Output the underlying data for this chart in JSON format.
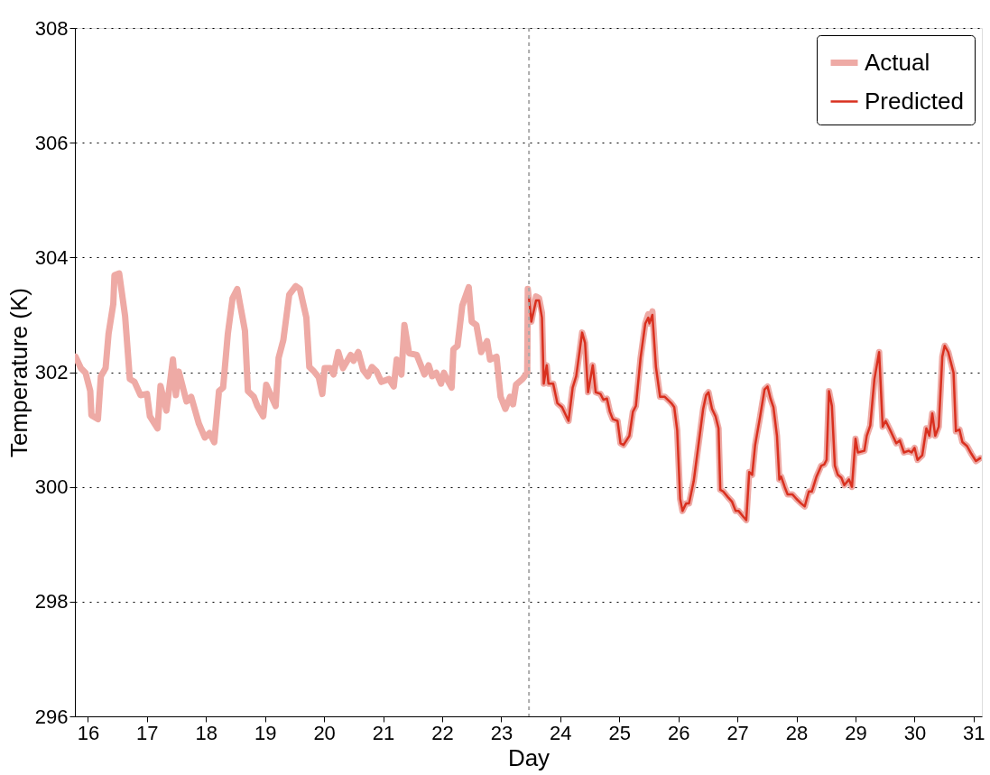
{
  "chart_data": {
    "type": "line",
    "xlabel": "Day",
    "ylabel": "Temperature (K)",
    "xlim": [
      15.78,
      31.14
    ],
    "xticks": [
      16,
      17,
      18,
      19,
      20,
      21,
      22,
      23,
      24,
      25,
      26,
      27,
      28,
      29,
      30,
      31
    ],
    "ylim": [
      296,
      308
    ],
    "yticks": [
      296,
      298,
      300,
      302,
      304,
      306,
      308
    ],
    "grid": "y",
    "legend": "top right",
    "line_style": "solid",
    "marker": "none",
    "ref_lines": [
      {
        "axis": "x",
        "value": 23.47,
        "label": null,
        "color": "#aaaaaa",
        "line_style": "dashed"
      }
    ],
    "series": [
      {
        "name": "Actual",
        "color": "#eeaaa5",
        "x": [
          15.79,
          15.88,
          15.96,
          16.04,
          16.06,
          16.17,
          16.22,
          16.3,
          16.35,
          16.43,
          16.45,
          16.53,
          16.63,
          16.71,
          16.79,
          16.89,
          17.0,
          17.05,
          17.18,
          17.23,
          17.33,
          17.44,
          17.49,
          17.54,
          17.67,
          17.75,
          17.88,
          17.98,
          18.06,
          18.14,
          18.22,
          18.29,
          18.37,
          18.45,
          18.53,
          18.66,
          18.71,
          18.81,
          18.87,
          18.97,
          19.02,
          19.18,
          19.23,
          19.31,
          19.41,
          19.52,
          19.59,
          19.7,
          19.75,
          19.83,
          19.91,
          19.97,
          20.01,
          20.11,
          20.16,
          20.24,
          20.32,
          20.45,
          20.5,
          20.58,
          20.66,
          20.74,
          20.81,
          20.89,
          20.97,
          21.1,
          21.18,
          21.23,
          21.31,
          21.36,
          21.44,
          21.57,
          21.7,
          21.77,
          21.83,
          21.9,
          21.98,
          22.03,
          22.08,
          22.16,
          22.19,
          22.26,
          22.34,
          22.45,
          22.5,
          22.58,
          22.66,
          22.76,
          22.81,
          22.92,
          22.99,
          23.07,
          23.15,
          23.2,
          23.25,
          23.36,
          23.44,
          23.45,
          23.51,
          23.59,
          23.64,
          23.69,
          23.72,
          23.77,
          23.8,
          23.88,
          23.95,
          24.03,
          24.14,
          24.21,
          24.27,
          24.37,
          24.42,
          24.47,
          24.55,
          24.6,
          24.68,
          24.73,
          24.79,
          24.84,
          24.89,
          24.97,
          25.02,
          25.07,
          25.17,
          25.23,
          25.28,
          25.36,
          25.44,
          25.49,
          25.51,
          25.56,
          25.62,
          25.69,
          25.77,
          25.88,
          25.93,
          25.98,
          26.03,
          26.07,
          26.13,
          26.18,
          26.26,
          26.34,
          26.42,
          26.47,
          26.51,
          26.57,
          26.63,
          26.68,
          26.71,
          26.76,
          26.84,
          26.91,
          26.97,
          27.02,
          27.1,
          27.15,
          27.2,
          27.25,
          27.3,
          27.38,
          27.46,
          27.51,
          27.56,
          27.61,
          27.67,
          27.71,
          27.74,
          27.8,
          27.85,
          27.93,
          28.0,
          28.08,
          28.14,
          28.21,
          28.26,
          28.34,
          28.42,
          28.47,
          28.51,
          28.55,
          28.6,
          28.65,
          28.7,
          28.76,
          28.81,
          28.89,
          28.94,
          29.0,
          29.04,
          29.15,
          29.19,
          29.25,
          29.32,
          29.4,
          29.46,
          29.51,
          29.61,
          29.69,
          29.75,
          29.82,
          29.9,
          29.95,
          30.0,
          30.05,
          30.13,
          30.2,
          30.25,
          30.3,
          30.35,
          30.41,
          30.47,
          30.51,
          30.57,
          30.66,
          30.7,
          30.76,
          30.81,
          30.89,
          30.96,
          31.04,
          31.11
        ],
        "values": [
          302.27,
          302.07,
          301.99,
          301.67,
          301.25,
          301.18,
          301.93,
          302.07,
          302.67,
          303.19,
          303.69,
          303.72,
          302.98,
          301.88,
          301.83,
          301.6,
          301.62,
          301.23,
          301.02,
          301.76,
          301.33,
          302.22,
          301.6,
          302.01,
          301.49,
          301.57,
          301.1,
          300.86,
          300.94,
          300.78,
          301.67,
          301.73,
          302.67,
          303.29,
          303.45,
          302.72,
          301.67,
          301.57,
          301.41,
          301.23,
          301.78,
          301.41,
          302.25,
          302.56,
          303.35,
          303.5,
          303.45,
          302.95,
          302.09,
          302.01,
          301.91,
          301.62,
          302.07,
          302.07,
          301.96,
          302.35,
          302.07,
          302.3,
          302.2,
          302.35,
          302.04,
          301.93,
          302.09,
          302.01,
          301.83,
          301.88,
          301.75,
          302.22,
          301.96,
          302.82,
          302.33,
          302.3,
          301.96,
          302.12,
          301.93,
          301.99,
          301.8,
          301.99,
          301.88,
          301.73,
          302.4,
          302.46,
          303.16,
          303.48,
          302.88,
          302.82,
          302.35,
          302.54,
          302.22,
          302.27,
          301.57,
          301.36,
          301.57,
          301.44,
          301.78,
          301.88,
          301.99,
          303.45,
          302.88,
          303.32,
          303.29,
          303.03,
          301.8,
          302.12,
          301.8,
          301.8,
          301.46,
          301.39,
          301.15,
          301.73,
          301.93,
          302.69,
          302.51,
          301.65,
          302.12,
          301.65,
          301.62,
          301.52,
          301.54,
          301.31,
          301.18,
          301.15,
          300.76,
          300.73,
          300.89,
          301.31,
          301.41,
          302.25,
          302.85,
          303.01,
          302.85,
          303.06,
          302.09,
          301.57,
          301.57,
          301.46,
          301.39,
          300.99,
          299.79,
          299.58,
          299.71,
          299.71,
          300.1,
          300.73,
          301.36,
          301.6,
          301.65,
          301.36,
          301.23,
          301.02,
          299.95,
          299.92,
          299.82,
          299.74,
          299.58,
          299.58,
          299.48,
          299.42,
          300.26,
          300.21,
          300.73,
          301.2,
          301.7,
          301.75,
          301.54,
          301.39,
          300.89,
          300.13,
          300.18,
          300.0,
          299.87,
          299.87,
          299.79,
          299.71,
          299.66,
          299.92,
          299.92,
          300.18,
          300.37,
          300.39,
          300.47,
          301.67,
          301.41,
          300.37,
          300.21,
          300.16,
          300.03,
          300.13,
          300.0,
          300.84,
          300.6,
          300.63,
          300.89,
          301.07,
          301.88,
          302.35,
          301.05,
          301.15,
          300.94,
          300.76,
          300.81,
          300.6,
          300.63,
          300.6,
          300.68,
          300.47,
          300.55,
          301.02,
          300.89,
          301.28,
          300.89,
          301.05,
          302.27,
          302.46,
          302.35,
          301.99,
          300.97,
          301.0,
          300.78,
          300.71,
          300.58,
          300.45,
          300.5
        ]
      },
      {
        "name": "Predicted",
        "color": "#d9301f",
        "x": [
          23.47,
          23.51,
          23.59,
          23.64,
          23.69,
          23.72,
          23.77,
          23.8,
          23.88,
          23.95,
          24.03,
          24.14,
          24.21,
          24.27,
          24.37,
          24.42,
          24.47,
          24.55,
          24.6,
          24.68,
          24.73,
          24.79,
          24.84,
          24.89,
          24.97,
          25.02,
          25.07,
          25.17,
          25.23,
          25.28,
          25.36,
          25.44,
          25.49,
          25.51,
          25.56,
          25.62,
          25.69,
          25.77,
          25.88,
          25.93,
          25.98,
          26.03,
          26.07,
          26.13,
          26.18,
          26.26,
          26.34,
          26.42,
          26.47,
          26.51,
          26.57,
          26.63,
          26.68,
          26.71,
          26.76,
          26.84,
          26.91,
          26.97,
          27.02,
          27.1,
          27.15,
          27.2,
          27.25,
          27.3,
          27.38,
          27.46,
          27.51,
          27.56,
          27.61,
          27.67,
          27.71,
          27.74,
          27.8,
          27.85,
          27.93,
          28.0,
          28.08,
          28.14,
          28.21,
          28.26,
          28.34,
          28.42,
          28.47,
          28.51,
          28.55,
          28.6,
          28.65,
          28.7,
          28.76,
          28.81,
          28.89,
          28.94,
          29.0,
          29.04,
          29.15,
          29.19,
          29.25,
          29.32,
          29.4,
          29.46,
          29.51,
          29.61,
          29.69,
          29.75,
          29.82,
          29.9,
          29.95,
          30.0,
          30.05,
          30.13,
          30.2,
          30.25,
          30.3,
          30.35,
          30.41,
          30.47,
          30.51,
          30.57,
          30.66,
          30.7,
          30.76,
          30.81,
          30.89,
          30.96,
          31.04,
          31.11
        ],
        "values": [
          303.3,
          302.88,
          303.25,
          303.25,
          302.95,
          301.8,
          302.12,
          301.8,
          301.8,
          301.46,
          301.39,
          301.15,
          301.73,
          301.93,
          302.69,
          302.51,
          301.65,
          302.12,
          301.65,
          301.62,
          301.52,
          301.54,
          301.31,
          301.18,
          301.15,
          300.76,
          300.73,
          300.89,
          301.31,
          301.41,
          302.25,
          302.85,
          302.95,
          302.85,
          303.0,
          302.09,
          301.57,
          301.57,
          301.46,
          301.39,
          300.99,
          299.79,
          299.58,
          299.71,
          299.71,
          300.1,
          300.73,
          301.36,
          301.6,
          301.65,
          301.36,
          301.23,
          301.02,
          299.95,
          299.92,
          299.82,
          299.74,
          299.58,
          299.58,
          299.48,
          299.42,
          300.26,
          300.21,
          300.73,
          301.2,
          301.7,
          301.75,
          301.54,
          301.39,
          300.89,
          300.13,
          300.18,
          300.0,
          299.87,
          299.87,
          299.79,
          299.71,
          299.66,
          299.92,
          299.92,
          300.18,
          300.37,
          300.39,
          300.47,
          301.67,
          301.41,
          300.37,
          300.21,
          300.16,
          300.03,
          300.13,
          300.0,
          300.84,
          300.6,
          300.63,
          300.89,
          301.07,
          301.88,
          302.35,
          301.05,
          301.15,
          300.94,
          300.76,
          300.81,
          300.6,
          300.63,
          300.6,
          300.68,
          300.47,
          300.55,
          301.02,
          300.89,
          301.28,
          300.89,
          301.05,
          302.27,
          302.46,
          302.35,
          301.99,
          300.97,
          301.0,
          300.78,
          300.71,
          300.58,
          300.45,
          300.5
        ]
      }
    ]
  }
}
